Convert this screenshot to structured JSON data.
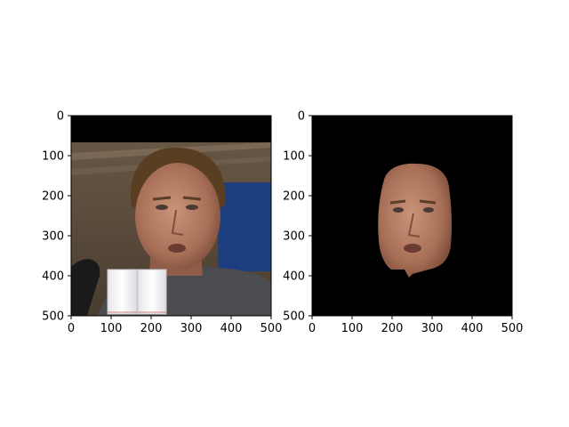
{
  "figure": {
    "background": "#ffffff"
  },
  "chart_data": [
    {
      "type": "image",
      "title": "",
      "xlabel": "",
      "ylabel": "",
      "xlim": [
        0,
        500
      ],
      "ylim": [
        500,
        0
      ],
      "xticks": [
        0,
        100,
        200,
        300,
        400,
        500
      ],
      "yticks": [
        0,
        100,
        200,
        300,
        400,
        500
      ],
      "grid": false,
      "content": "photo-face-with-background",
      "colors": {
        "top_band": "#000000",
        "wall": "#5a4a3a",
        "banner": "#1d3f7f",
        "skin": "#b07a62",
        "hair": "#5a3e22",
        "hoodie": "#4a4c50",
        "mic": "#1a1a1a",
        "cup": "#f2f2f4"
      }
    },
    {
      "type": "image",
      "title": "",
      "xlabel": "",
      "ylabel": "",
      "xlim": [
        0,
        500
      ],
      "ylim": [
        500,
        0
      ],
      "xticks": [
        0,
        100,
        200,
        300,
        400,
        500
      ],
      "yticks": [
        0,
        100,
        200,
        300,
        400,
        500
      ],
      "grid": false,
      "content": "face-mask-on-black",
      "colors": {
        "background": "#000000",
        "skin": "#b07a62"
      }
    }
  ]
}
